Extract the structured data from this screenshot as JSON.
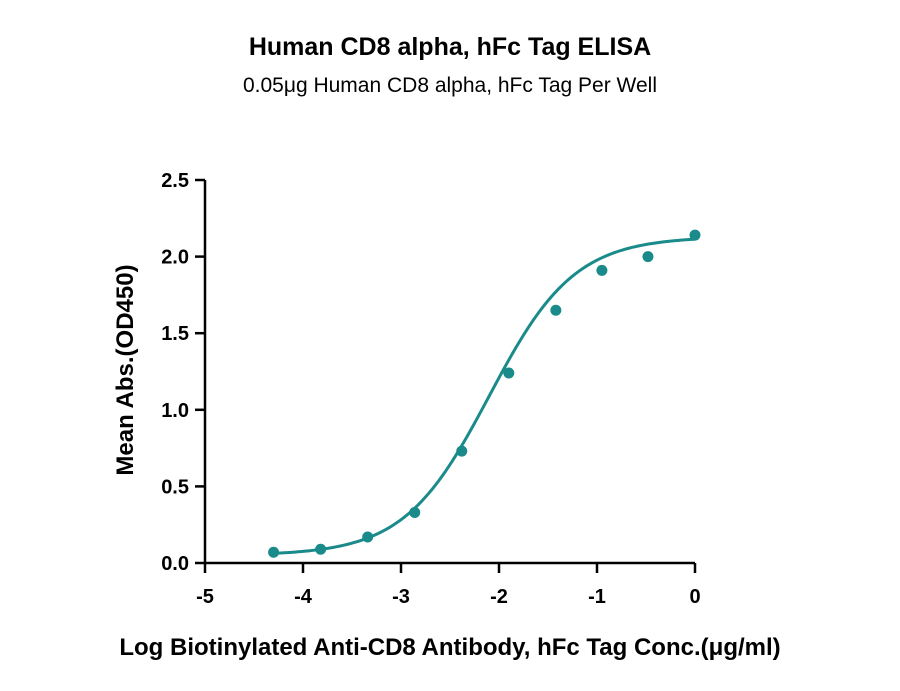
{
  "chart_data": {
    "type": "scatter",
    "title": "Human CD8 alpha, hFc Tag ELISA",
    "subtitle": "0.05μg Human CD8 alpha, hFc Tag Per Well",
    "xlabel": "Log Biotinylated Anti-CD8 Antibody, hFc Tag Conc.(μg/ml)",
    "ylabel": "Mean Abs.(OD450)",
    "xlim": [
      -5,
      0
    ],
    "ylim": [
      0,
      2.5
    ],
    "x_ticks": [
      "-5",
      "-4",
      "-3",
      "-2",
      "-1",
      "0"
    ],
    "y_ticks": [
      "0.0",
      "0.5",
      "1.0",
      "1.5",
      "2.0",
      "2.5"
    ],
    "grid": false,
    "color": "#1a8a8a",
    "points": {
      "x": [
        -4.3,
        -3.82,
        -3.34,
        -2.86,
        -2.38,
        -1.9,
        -1.42,
        -0.95,
        -0.48,
        0.0
      ],
      "y": [
        0.07,
        0.09,
        0.17,
        0.33,
        0.73,
        1.24,
        1.65,
        1.91,
        2.0,
        2.14
      ]
    },
    "fit_curve": {
      "model": "4PL",
      "bottom": 0.05,
      "top": 2.13,
      "log_ec50": -2.1,
      "hill_slope": 1.0
    }
  }
}
